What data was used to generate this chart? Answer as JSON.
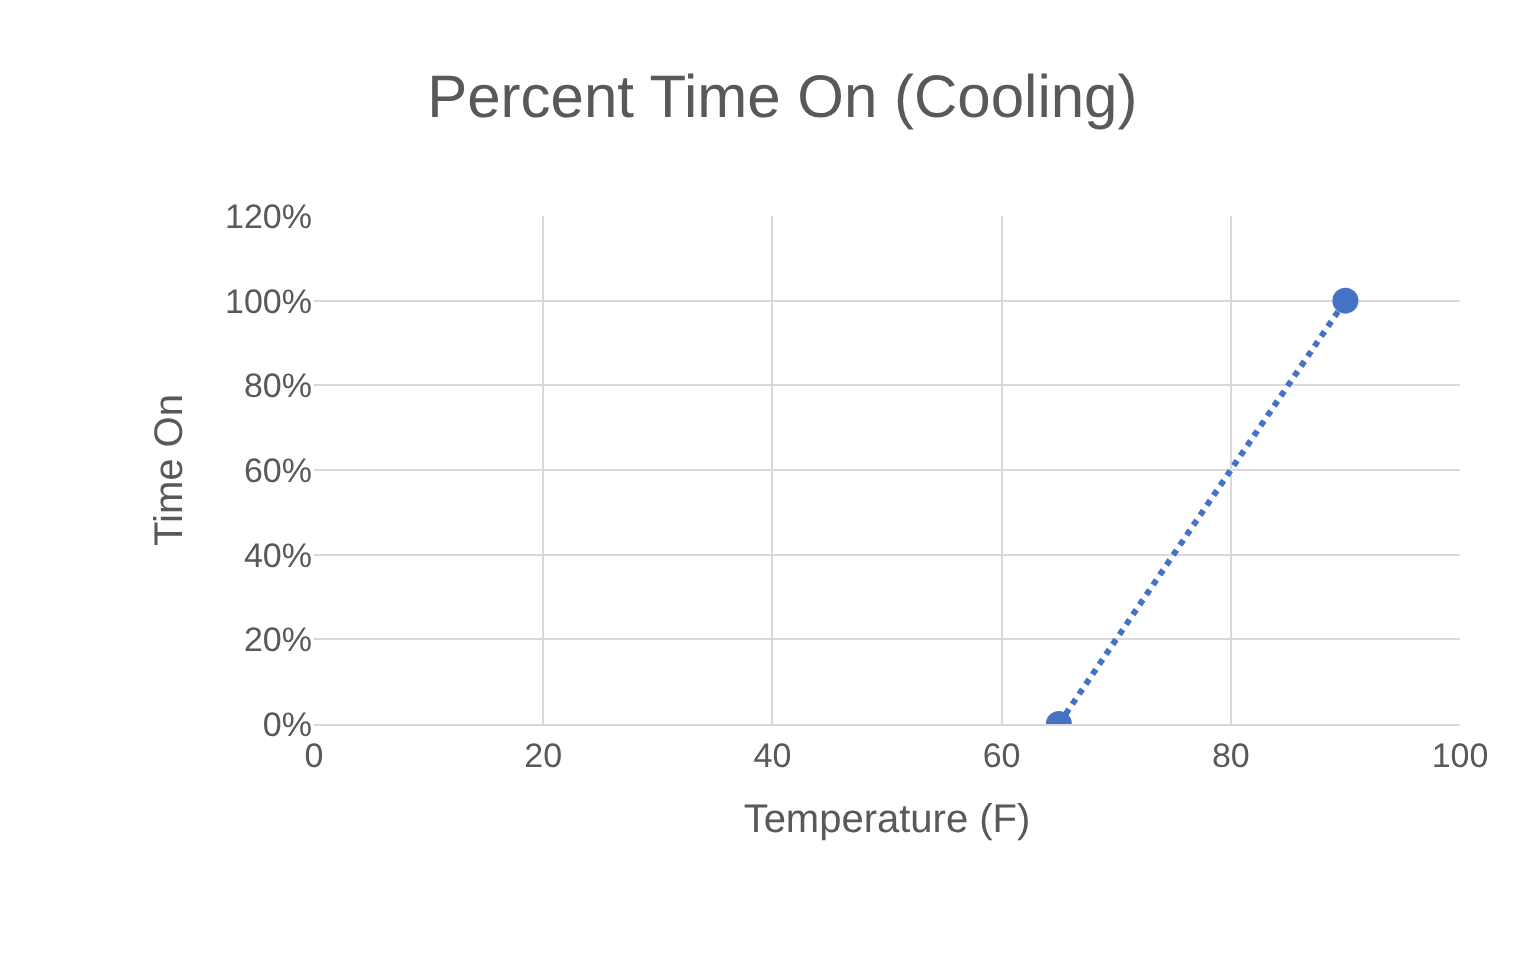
{
  "chart_data": {
    "type": "line",
    "title": "Percent Time On (Cooling)",
    "xlabel": "Temperature (F)",
    "ylabel": "Time On",
    "series": [
      {
        "color": "#4472c4",
        "x": [
          65,
          90
        ],
        "values": [
          0,
          100
        ]
      }
    ],
    "xlim": [
      0,
      100
    ],
    "xticks": [
      0,
      20,
      40,
      60,
      80,
      100
    ],
    "ylim": [
      0,
      120
    ],
    "yticks": [
      {
        "value": 0,
        "label": "0%"
      },
      {
        "value": 20,
        "label": "20%"
      },
      {
        "value": 40,
        "label": "40%"
      },
      {
        "value": 60,
        "label": "60%"
      },
      {
        "value": 80,
        "label": "80%"
      },
      {
        "value": 100,
        "label": "100%"
      },
      {
        "value": 120,
        "label": "120%"
      }
    ],
    "grid": true,
    "legend": false,
    "marker": "circle",
    "line_style": "dotted"
  }
}
